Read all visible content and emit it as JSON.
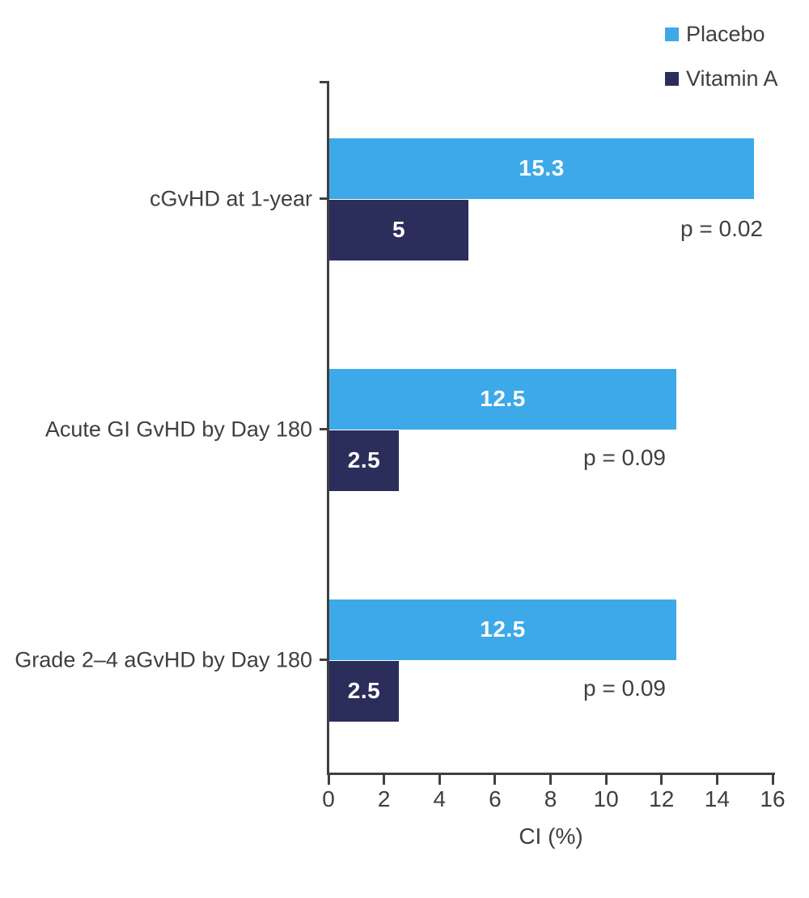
{
  "chart_data": {
    "type": "bar",
    "orientation": "horizontal",
    "title": "",
    "categories": [
      "cGvHD at 1-year",
      "Acute GI GvHD by Day 180",
      "Grade 2–4 aGvHD by Day 180"
    ],
    "series": [
      {
        "name": "Placebo",
        "color": "#3DA9E8",
        "values": [
          15.3,
          12.5,
          12.5
        ],
        "value_labels": [
          "15.3",
          "12.5",
          "12.5"
        ]
      },
      {
        "name": "Vitamin A",
        "color": "#2B2D5A",
        "values": [
          5,
          2.5,
          2.5
        ],
        "value_labels": [
          "5",
          "2.5",
          "2.5"
        ]
      }
    ],
    "annotations": [
      "p = 0.02",
      "p = 0.09",
      "p = 0.09"
    ],
    "xlabel": "CI (%)",
    "xlim": [
      0,
      16
    ],
    "x_ticks": [
      0,
      2,
      4,
      6,
      8,
      10,
      12,
      14,
      16
    ],
    "grid": false,
    "legend_position": "top-right"
  },
  "legend": {
    "items": [
      {
        "label": "Placebo",
        "color": "#3DA9E8"
      },
      {
        "label": "Vitamin A",
        "color": "#2B2D5A"
      }
    ]
  },
  "colors": {
    "axis": "#404040",
    "text": "#3F3F3F",
    "bar_label": "#FFFFFF",
    "background": "#FFFFFF"
  }
}
